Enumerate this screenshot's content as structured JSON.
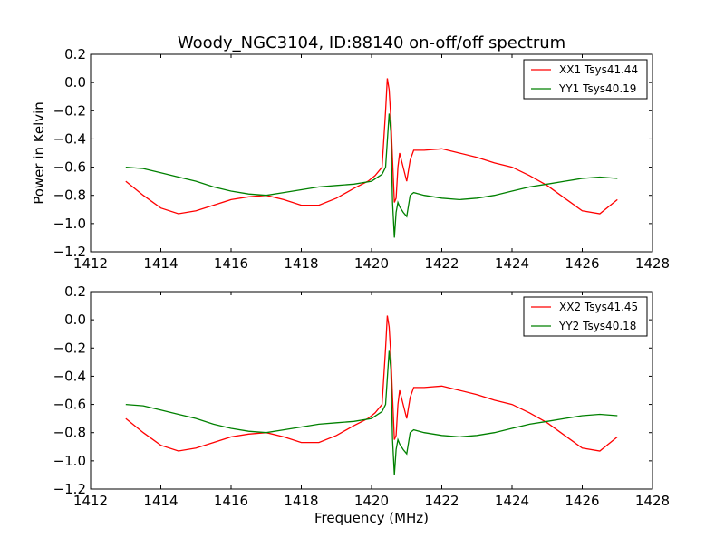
{
  "chart_data": [
    {
      "type": "line",
      "title": "Woody_NGC3104, ID:88140 on-off/off spectrum",
      "xlabel": "",
      "ylabel": "Power in Kelvin",
      "xlim": [
        1412,
        1428
      ],
      "ylim": [
        -1.2,
        0.2
      ],
      "xticks": [
        "1412",
        "1414",
        "1416",
        "1418",
        "1420",
        "1422",
        "1424",
        "1426",
        "1428"
      ],
      "yticks": [
        "0.2",
        "0.0",
        "−0.2",
        "−0.4",
        "−0.6",
        "−0.8",
        "−1.0",
        "−1.2"
      ],
      "legend_position": "top-right",
      "grid": false,
      "series": [
        {
          "name": "XX1 Tsys41.44",
          "color": "#ff0000",
          "x": [
            1413.0,
            1413.5,
            1414.0,
            1414.5,
            1415.0,
            1415.5,
            1416.0,
            1416.5,
            1417.0,
            1417.5,
            1418.0,
            1418.5,
            1419.0,
            1419.5,
            1419.9,
            1420.1,
            1420.3,
            1420.4,
            1420.45,
            1420.5,
            1420.55,
            1420.6,
            1420.65,
            1420.7,
            1420.75,
            1420.8,
            1420.9,
            1421.0,
            1421.1,
            1421.2,
            1421.5,
            1422.0,
            1422.5,
            1423.0,
            1423.5,
            1424.0,
            1424.5,
            1425.0,
            1425.5,
            1426.0,
            1426.5,
            1427.0
          ],
          "y": [
            -0.7,
            -0.8,
            -0.89,
            -0.93,
            -0.91,
            -0.87,
            -0.83,
            -0.81,
            -0.8,
            -0.83,
            -0.87,
            -0.87,
            -0.82,
            -0.75,
            -0.7,
            -0.66,
            -0.6,
            -0.2,
            0.03,
            -0.05,
            -0.25,
            -0.55,
            -0.85,
            -0.82,
            -0.6,
            -0.5,
            -0.6,
            -0.7,
            -0.55,
            -0.48,
            -0.48,
            -0.47,
            -0.5,
            -0.53,
            -0.57,
            -0.6,
            -0.66,
            -0.73,
            -0.82,
            -0.91,
            -0.93,
            -0.83
          ]
        },
        {
          "name": "YY1 Tsys40.19",
          "color": "#008000",
          "x": [
            1413.0,
            1413.5,
            1414.0,
            1414.5,
            1415.0,
            1415.5,
            1416.0,
            1416.5,
            1417.0,
            1417.5,
            1418.0,
            1418.5,
            1419.0,
            1419.5,
            1420.0,
            1420.3,
            1420.4,
            1420.5,
            1420.55,
            1420.6,
            1420.65,
            1420.7,
            1420.75,
            1420.8,
            1420.9,
            1421.0,
            1421.1,
            1421.2,
            1421.5,
            1422.0,
            1422.5,
            1423.0,
            1423.5,
            1424.0,
            1424.5,
            1425.0,
            1425.5,
            1426.0,
            1426.5,
            1427.0
          ],
          "y": [
            -0.6,
            -0.61,
            -0.64,
            -0.67,
            -0.7,
            -0.74,
            -0.77,
            -0.79,
            -0.8,
            -0.78,
            -0.76,
            -0.74,
            -0.73,
            -0.72,
            -0.7,
            -0.65,
            -0.6,
            -0.22,
            -0.35,
            -0.85,
            -1.1,
            -0.92,
            -0.85,
            -0.88,
            -0.92,
            -0.95,
            -0.8,
            -0.78,
            -0.8,
            -0.82,
            -0.83,
            -0.82,
            -0.8,
            -0.77,
            -0.74,
            -0.72,
            -0.7,
            -0.68,
            -0.67,
            -0.68
          ]
        }
      ]
    },
    {
      "type": "line",
      "title": "",
      "xlabel": "Frequency (MHz)",
      "ylabel": "",
      "xlim": [
        1412,
        1428
      ],
      "ylim": [
        -1.2,
        0.2
      ],
      "xticks": [
        "1412",
        "1414",
        "1416",
        "1418",
        "1420",
        "1422",
        "1424",
        "1426",
        "1428"
      ],
      "yticks": [
        "0.2",
        "0.0",
        "−0.2",
        "−0.4",
        "−0.6",
        "−0.8",
        "−1.0",
        "−1.2"
      ],
      "legend_position": "top-right",
      "grid": false,
      "series": [
        {
          "name": "XX2 Tsys41.45",
          "color": "#ff0000",
          "x": [
            1413.0,
            1413.5,
            1414.0,
            1414.5,
            1415.0,
            1415.5,
            1416.0,
            1416.5,
            1417.0,
            1417.5,
            1418.0,
            1418.5,
            1419.0,
            1419.5,
            1419.9,
            1420.1,
            1420.3,
            1420.4,
            1420.45,
            1420.5,
            1420.55,
            1420.6,
            1420.65,
            1420.7,
            1420.75,
            1420.8,
            1420.9,
            1421.0,
            1421.1,
            1421.2,
            1421.5,
            1422.0,
            1422.5,
            1423.0,
            1423.5,
            1424.0,
            1424.5,
            1425.0,
            1425.5,
            1426.0,
            1426.5,
            1427.0
          ],
          "y": [
            -0.7,
            -0.8,
            -0.89,
            -0.93,
            -0.91,
            -0.87,
            -0.83,
            -0.81,
            -0.8,
            -0.83,
            -0.87,
            -0.87,
            -0.82,
            -0.75,
            -0.7,
            -0.66,
            -0.6,
            -0.2,
            0.03,
            -0.05,
            -0.25,
            -0.55,
            -0.85,
            -0.82,
            -0.6,
            -0.5,
            -0.6,
            -0.7,
            -0.55,
            -0.48,
            -0.48,
            -0.47,
            -0.5,
            -0.53,
            -0.57,
            -0.6,
            -0.66,
            -0.73,
            -0.82,
            -0.91,
            -0.93,
            -0.83
          ]
        },
        {
          "name": "YY2 Tsys40.18",
          "color": "#008000",
          "x": [
            1413.0,
            1413.5,
            1414.0,
            1414.5,
            1415.0,
            1415.5,
            1416.0,
            1416.5,
            1417.0,
            1417.5,
            1418.0,
            1418.5,
            1419.0,
            1419.5,
            1420.0,
            1420.3,
            1420.4,
            1420.5,
            1420.55,
            1420.6,
            1420.65,
            1420.7,
            1420.75,
            1420.8,
            1420.9,
            1421.0,
            1421.1,
            1421.2,
            1421.5,
            1422.0,
            1422.5,
            1423.0,
            1423.5,
            1424.0,
            1424.5,
            1425.0,
            1425.5,
            1426.0,
            1426.5,
            1427.0
          ],
          "y": [
            -0.6,
            -0.61,
            -0.64,
            -0.67,
            -0.7,
            -0.74,
            -0.77,
            -0.79,
            -0.8,
            -0.78,
            -0.76,
            -0.74,
            -0.73,
            -0.72,
            -0.7,
            -0.65,
            -0.6,
            -0.22,
            -0.35,
            -0.85,
            -1.1,
            -0.92,
            -0.85,
            -0.88,
            -0.92,
            -0.95,
            -0.8,
            -0.78,
            -0.8,
            -0.82,
            -0.83,
            -0.82,
            -0.8,
            -0.77,
            -0.74,
            -0.72,
            -0.7,
            -0.68,
            -0.67,
            -0.68
          ]
        }
      ]
    }
  ]
}
